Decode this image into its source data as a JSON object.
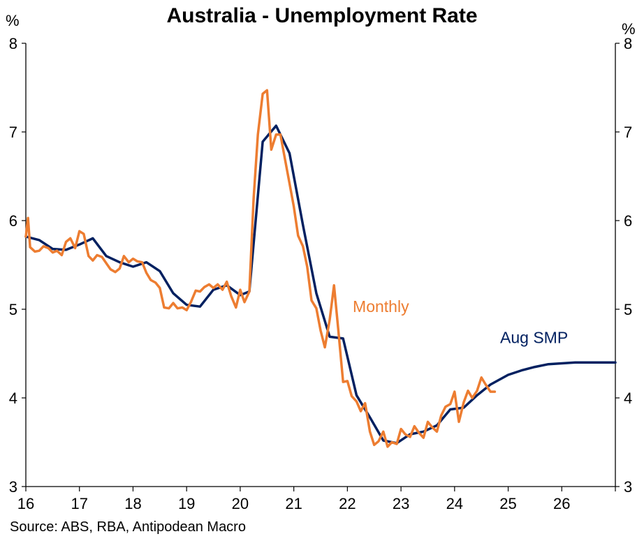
{
  "chart_data": {
    "type": "line",
    "title": "Australia - Unemployment Rate",
    "unit_left": "%",
    "unit_right": "%",
    "source": "Source: ABS, RBA, Antipodean Macro",
    "x_labels": [
      "16",
      "17",
      "18",
      "19",
      "20",
      "21",
      "22",
      "23",
      "24",
      "25",
      "26"
    ],
    "x_range": [
      2016,
      2027
    ],
    "y_ticks": [
      "3",
      "4",
      "5",
      "6",
      "7",
      "8"
    ],
    "ylim": [
      3,
      8
    ],
    "grid": false,
    "annotations": [
      {
        "text": "Monthly",
        "series": "Monthly",
        "color": "#ED7D31"
      },
      {
        "text": "Aug SMP",
        "series": "Aug SMP",
        "color": "#002060"
      }
    ],
    "series": [
      {
        "name": "Aug SMP",
        "color": "#002060",
        "x": [
          2016.0,
          2016.25,
          2016.5,
          2016.75,
          2017.0,
          2017.25,
          2017.5,
          2017.75,
          2018.0,
          2018.25,
          2018.5,
          2018.75,
          2019.0,
          2019.25,
          2019.5,
          2019.75,
          2020.0,
          2020.17,
          2020.42,
          2020.67,
          2020.92,
          2021.17,
          2021.42,
          2021.67,
          2021.92,
          2022.17,
          2022.42,
          2022.67,
          2022.92,
          2023.17,
          2023.42,
          2023.67,
          2023.92,
          2024.17,
          2024.42,
          2024.67,
          2025.0,
          2025.25,
          2025.5,
          2025.75,
          2026.0,
          2026.25,
          2026.5,
          2026.75,
          2027.0
        ],
        "y": [
          5.82,
          5.78,
          5.68,
          5.67,
          5.73,
          5.8,
          5.6,
          5.53,
          5.48,
          5.53,
          5.43,
          5.18,
          5.05,
          5.03,
          5.22,
          5.27,
          5.16,
          5.2,
          6.89,
          7.07,
          6.76,
          5.95,
          5.18,
          4.69,
          4.67,
          4.03,
          3.78,
          3.52,
          3.49,
          3.59,
          3.62,
          3.69,
          3.87,
          3.89,
          4.03,
          4.15,
          4.26,
          4.31,
          4.35,
          4.38,
          4.39,
          4.4,
          4.4,
          4.4,
          4.4
        ]
      },
      {
        "name": "Monthly",
        "color": "#ED7D31",
        "x": [
          2016.0,
          2016.04,
          2016.08,
          2016.17,
          2016.25,
          2016.33,
          2016.42,
          2016.5,
          2016.58,
          2016.67,
          2016.75,
          2016.83,
          2016.92,
          2017.0,
          2017.08,
          2017.17,
          2017.25,
          2017.33,
          2017.42,
          2017.5,
          2017.58,
          2017.67,
          2017.75,
          2017.83,
          2017.92,
          2018.0,
          2018.08,
          2018.17,
          2018.25,
          2018.33,
          2018.42,
          2018.5,
          2018.58,
          2018.67,
          2018.75,
          2018.83,
          2018.92,
          2019.0,
          2019.08,
          2019.17,
          2019.25,
          2019.33,
          2019.42,
          2019.5,
          2019.58,
          2019.67,
          2019.75,
          2019.83,
          2019.92,
          2020.0,
          2020.08,
          2020.17,
          2020.25,
          2020.33,
          2020.42,
          2020.5,
          2020.58,
          2020.67,
          2020.75,
          2020.83,
          2020.92,
          2021.0,
          2021.08,
          2021.17,
          2021.25,
          2021.33,
          2021.42,
          2021.5,
          2021.58,
          2021.67,
          2021.75,
          2021.83,
          2021.92,
          2022.0,
          2022.08,
          2022.17,
          2022.25,
          2022.33,
          2022.42,
          2022.5,
          2022.58,
          2022.67,
          2022.75,
          2022.83,
          2022.92,
          2023.0,
          2023.08,
          2023.17,
          2023.25,
          2023.33,
          2023.42,
          2023.5,
          2023.58,
          2023.67,
          2023.75,
          2023.83,
          2023.92,
          2024.0,
          2024.08,
          2024.17,
          2024.25,
          2024.33,
          2024.42,
          2024.5,
          2024.58,
          2024.67,
          2024.75
        ],
        "y": [
          5.82,
          6.03,
          5.7,
          5.65,
          5.66,
          5.71,
          5.69,
          5.64,
          5.66,
          5.61,
          5.76,
          5.8,
          5.69,
          5.88,
          5.85,
          5.6,
          5.55,
          5.61,
          5.59,
          5.52,
          5.45,
          5.42,
          5.46,
          5.6,
          5.53,
          5.57,
          5.54,
          5.53,
          5.41,
          5.33,
          5.3,
          5.24,
          5.02,
          5.01,
          5.07,
          5.01,
          5.02,
          4.99,
          5.08,
          5.21,
          5.2,
          5.25,
          5.28,
          5.24,
          5.28,
          5.22,
          5.31,
          5.15,
          5.02,
          5.22,
          5.08,
          5.2,
          6.25,
          6.97,
          7.43,
          7.47,
          6.8,
          6.97,
          6.97,
          6.71,
          6.42,
          6.16,
          5.83,
          5.71,
          5.48,
          5.1,
          5.01,
          4.76,
          4.57,
          4.88,
          5.27,
          4.77,
          4.18,
          4.19,
          4.02,
          3.96,
          3.85,
          3.94,
          3.62,
          3.47,
          3.51,
          3.62,
          3.45,
          3.5,
          3.48,
          3.65,
          3.59,
          3.56,
          3.68,
          3.61,
          3.55,
          3.73,
          3.67,
          3.62,
          3.8,
          3.9,
          3.93,
          4.07,
          3.73,
          3.95,
          4.08,
          4.0,
          4.08,
          4.23,
          4.15,
          4.07,
          4.07
        ]
      }
    ]
  }
}
